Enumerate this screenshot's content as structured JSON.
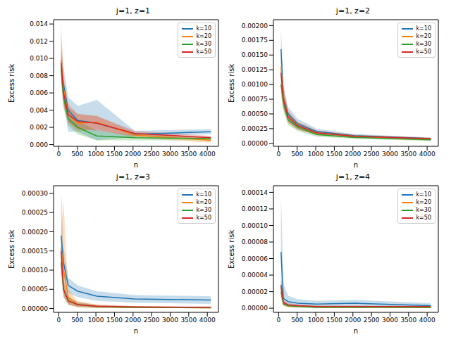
{
  "chart_data": [
    {
      "type": "line",
      "title": "j=1, z=1",
      "x_label": "n",
      "y_label": "Excess risk",
      "legend": "upper right",
      "grid": false,
      "x": [
        64,
        128,
        256,
        512,
        1024,
        2048,
        4096
      ],
      "xlim": [
        -140,
        4300
      ],
      "xticks": [
        0,
        500,
        1000,
        1500,
        2000,
        2500,
        3000,
        3500,
        4000
      ],
      "ylim": [
        -0.0002,
        0.0145
      ],
      "yticks": [
        {
          "value": 0,
          "label": "0.000"
        },
        0.002,
        0.004,
        0.006,
        0.008,
        {
          "value": 0.01,
          "label": "0.010"
        },
        0.012,
        0.014
      ],
      "series": [
        {
          "name": "k=10",
          "color": "#1f77b4",
          "values": [
            0.0095,
            0.007,
            0.004,
            0.0028,
            0.0025,
            0.0012,
            0.0015
          ],
          "lower": [
            0.0075,
            0.005,
            0.0015,
            0.0015,
            0.0005,
            0.0009,
            0.0012
          ],
          "upper": [
            0.0112,
            0.009,
            0.0055,
            0.0045,
            0.0052,
            0.0016,
            0.0018
          ]
        },
        {
          "name": "k=20",
          "color": "#ff7f0e",
          "values": [
            0.0098,
            0.0065,
            0.0035,
            0.0025,
            0.0026,
            0.0011,
            0.0005
          ],
          "lower": [
            0.008,
            0.005,
            0.0025,
            0.0015,
            0.0018,
            0.0008,
            0.0002
          ],
          "upper": [
            0.0142,
            0.008,
            0.0048,
            0.0035,
            0.0034,
            0.0014,
            0.0008
          ]
        },
        {
          "name": "k=30",
          "color": "#2ca02c",
          "values": [
            0.0088,
            0.0055,
            0.003,
            0.002,
            0.001,
            0.0008,
            0.0007
          ],
          "lower": [
            0.0072,
            0.0042,
            0.0022,
            0.0012,
            0.0005,
            0.0005,
            0.0005
          ],
          "upper": [
            0.0105,
            0.0068,
            0.0038,
            0.0028,
            0.0016,
            0.0011,
            0.0009
          ]
        },
        {
          "name": "k=50",
          "color": "#d62728",
          "values": [
            0.0095,
            0.006,
            0.0035,
            0.0027,
            0.0025,
            0.0013,
            0.0008
          ],
          "lower": [
            0.0078,
            0.0045,
            0.0026,
            0.0018,
            0.0016,
            0.001,
            0.0006
          ],
          "upper": [
            0.013,
            0.0075,
            0.0044,
            0.0036,
            0.0033,
            0.0016,
            0.001
          ]
        }
      ]
    },
    {
      "type": "line",
      "title": "j=1, z=2",
      "x_label": "n",
      "y_label": "Excess risk",
      "legend": "upper right",
      "grid": false,
      "x": [
        64,
        128,
        256,
        512,
        1024,
        2048,
        4096
      ],
      "xlim": [
        -140,
        4300
      ],
      "xticks": [
        0,
        500,
        1000,
        1500,
        2000,
        2500,
        3000,
        3500,
        4000
      ],
      "ylim": [
        -5e-05,
        0.0021
      ],
      "yticks": [
        {
          "value": 0,
          "label": "0.00000"
        },
        0.00025,
        {
          "value": 0.0005,
          "label": "0.00050"
        },
        0.00075,
        {
          "value": 0.001,
          "label": "0.00100"
        },
        0.00125,
        {
          "value": 0.0015,
          "label": "0.00150"
        },
        0.00175,
        {
          "value": 0.002,
          "label": "0.00200"
        }
      ],
      "series": [
        {
          "name": "k=10",
          "color": "#1f77b4",
          "values": [
            0.0016,
            0.0008,
            0.0005,
            0.00033,
            0.0002,
            0.00013,
            8e-05
          ],
          "lower": [
            0.0012,
            0.0006,
            0.00038,
            0.00025,
            0.00015,
            0.0001,
            6e-05
          ],
          "upper": [
            0.00195,
            0.001,
            0.00062,
            0.00042,
            0.00025,
            0.00016,
            0.0001
          ]
        },
        {
          "name": "k=20",
          "color": "#ff7f0e",
          "values": [
            0.0013,
            0.0008,
            0.00045,
            0.0003,
            0.00018,
            0.00012,
            7e-05
          ],
          "lower": [
            0.001,
            0.00062,
            0.00035,
            0.00023,
            0.00014,
            9e-05,
            5e-05
          ],
          "upper": [
            0.0016,
            0.00098,
            0.00055,
            0.00037,
            0.00022,
            0.00015,
            9e-05
          ]
        },
        {
          "name": "k=30",
          "color": "#2ca02c",
          "values": [
            0.001,
            0.0007,
            0.0004,
            0.00028,
            0.00015,
            0.0001,
            6e-05
          ],
          "lower": [
            0.0008,
            0.00055,
            0.00031,
            0.00021,
            0.00011,
            8e-05,
            4e-05
          ],
          "upper": [
            0.0012,
            0.00085,
            0.00049,
            0.00035,
            0.00019,
            0.00012,
            8e-05
          ]
        },
        {
          "name": "k=50",
          "color": "#d62728",
          "values": [
            0.0012,
            0.00075,
            0.00045,
            0.0003,
            0.00018,
            0.00012,
            8e-05
          ],
          "lower": [
            0.00095,
            0.0006,
            0.00036,
            0.00024,
            0.00014,
            0.0001,
            6e-05
          ],
          "upper": [
            0.00145,
            0.0009,
            0.00054,
            0.00036,
            0.00022,
            0.00014,
            0.0001
          ]
        }
      ]
    },
    {
      "type": "line",
      "title": "j=1, z=3",
      "x_label": "n",
      "y_label": "Excess risk",
      "legend": "upper right",
      "grid": false,
      "x": [
        64,
        128,
        256,
        512,
        1024,
        2048,
        4096
      ],
      "xlim": [
        -140,
        4300
      ],
      "xticks": [
        0,
        500,
        1000,
        1500,
        2000,
        2500,
        3000,
        3500,
        4000
      ],
      "ylim": [
        -1e-05,
        0.00032
      ],
      "yticks": [
        {
          "value": 0,
          "label": "0.00000"
        },
        5e-05,
        {
          "value": 0.0001,
          "label": "0.00010"
        },
        0.00015,
        {
          "value": 0.0002,
          "label": "0.00020"
        },
        0.00025,
        {
          "value": 0.0003,
          "label": "0.00030"
        }
      ],
      "series": [
        {
          "name": "k=10",
          "color": "#1f77b4",
          "values": [
            0.00019,
            0.00012,
            6e-05,
            4.5e-05,
            3.2e-05,
            2.5e-05,
            2.2e-05
          ],
          "lower": [
            0.00012,
            8e-05,
            4e-05,
            3e-05,
            2e-05,
            1.5e-05,
            1.2e-05
          ],
          "upper": [
            0.00031,
            0.00016,
            8e-05,
            6e-05,
            4.5e-05,
            3.5e-05,
            3.2e-05
          ]
        },
        {
          "name": "k=20",
          "color": "#ff7f0e",
          "values": [
            0.00016,
            0.0001,
            3e-05,
            1e-05,
            5e-06,
            3e-06,
            2e-06
          ],
          "lower": [
            0.00011,
            4e-05,
            1e-05,
            3e-06,
            1e-06,
            1e-06,
            1e-06
          ],
          "upper": [
            0.00021,
            0.00028,
            5e-05,
            2e-05,
            1e-05,
            6e-06,
            4e-06
          ]
        },
        {
          "name": "k=30",
          "color": "#2ca02c",
          "values": [
            0.00012,
            5e-05,
            2e-05,
            1e-05,
            5e-06,
            3e-06,
            2e-06
          ],
          "lower": [
            9e-05,
            3e-05,
            1e-05,
            4e-06,
            2e-06,
            1e-06,
            1e-06
          ],
          "upper": [
            0.00015,
            7e-05,
            3e-05,
            1.6e-05,
            8e-06,
            5e-06,
            3e-06
          ]
        },
        {
          "name": "k=50",
          "color": "#d62728",
          "values": [
            0.00015,
            5e-05,
            2e-05,
            1e-05,
            6e-06,
            4e-06,
            3e-06
          ],
          "lower": [
            0.00011,
            3e-05,
            1e-05,
            4e-06,
            2e-06,
            2e-06,
            1e-06
          ],
          "upper": [
            0.00019,
            8e-05,
            3e-05,
            1.6e-05,
            1e-05,
            6e-06,
            5e-06
          ]
        }
      ]
    },
    {
      "type": "line",
      "title": "j=1, z=4",
      "x_label": "n",
      "y_label": "Excess risk",
      "legend": "upper right",
      "grid": false,
      "x": [
        64,
        128,
        256,
        512,
        1024,
        2048,
        4096
      ],
      "xlim": [
        -140,
        4300
      ],
      "xticks": [
        0,
        500,
        1000,
        1500,
        2000,
        2500,
        3000,
        3500,
        4000
      ],
      "ylim": [
        -5e-06,
        0.000148
      ],
      "yticks": [
        {
          "value": 0,
          "label": "0.00000"
        },
        2e-05,
        4e-05,
        6e-05,
        8e-05,
        {
          "value": 0.0001,
          "label": "0.00010"
        },
        0.00012,
        0.00014
      ],
      "series": [
        {
          "name": "k=10",
          "color": "#1f77b4",
          "values": [
            6.8e-05,
            1.2e-05,
            8e-06,
            6e-06,
            5e-06,
            6e-06,
            3e-06
          ],
          "lower": [
            3e-05,
            4e-06,
            3e-06,
            2e-06,
            2e-06,
            2e-06,
            1e-06
          ],
          "upper": [
            0.000138,
            3e-05,
            1.5e-05,
            1.1e-05,
            9e-06,
            1e-05,
            6e-06
          ]
        },
        {
          "name": "k=20",
          "color": "#ff7f0e",
          "values": [
            2.5e-05,
            6e-06,
            3e-06,
            2e-06,
            2e-06,
            2e-06,
            1e-06
          ],
          "lower": [
            1.5e-05,
            3e-06,
            1e-06,
            1e-06,
            1e-06,
            1e-06,
            0
          ],
          "upper": [
            3.5e-05,
            9e-06,
            5e-06,
            3e-06,
            3e-06,
            3e-06,
            2e-06
          ]
        },
        {
          "name": "k=30",
          "color": "#2ca02c",
          "values": [
            2e-05,
            5e-06,
            3e-06,
            2e-06,
            1e-06,
            1e-06,
            1e-06
          ],
          "lower": [
            1.2e-05,
            3e-06,
            1e-06,
            1e-06,
            0,
            0,
            0
          ],
          "upper": [
            2.8e-05,
            7e-06,
            5e-06,
            3e-06,
            2e-06,
            2e-06,
            2e-06
          ]
        },
        {
          "name": "k=50",
          "color": "#d62728",
          "values": [
            2.8e-05,
            7e-06,
            4e-06,
            3e-06,
            2e-06,
            2e-06,
            2e-06
          ],
          "lower": [
            1.8e-05,
            4e-06,
            2e-06,
            1e-06,
            1e-06,
            1e-06,
            1e-06
          ],
          "upper": [
            3.8e-05,
            1e-05,
            6e-06,
            5e-06,
            3e-06,
            3e-06,
            3e-06
          ]
        }
      ]
    }
  ]
}
